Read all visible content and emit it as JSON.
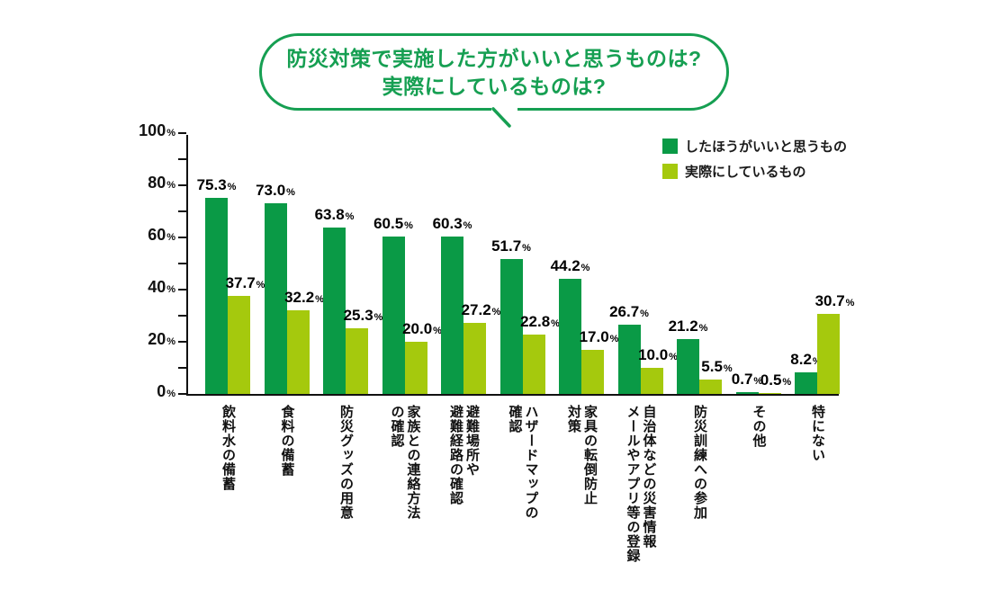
{
  "title": {
    "line1": "防災対策で実施した方がいいと思うものは?",
    "line2": "実際にしているものは?"
  },
  "colors": {
    "title_green": "#169f52",
    "series_think": "#0a9a46",
    "series_doing": "#a5c90d",
    "axis": "#111111",
    "background": "#ffffff"
  },
  "legend": {
    "items": [
      {
        "label": "したほうがいいと思うもの",
        "color": "#0a9a46"
      },
      {
        "label": "実際にしているもの",
        "color": "#a5c90d"
      }
    ]
  },
  "chart_data": {
    "type": "bar",
    "title": "防災対策で実施した方がいいと思うものは? 実際にしているものは?",
    "categories": [
      "飲料水の備蓄",
      "食料の備蓄",
      "防災グッズの用意",
      "家族との連絡方法\nの確認",
      "避難場所や\n避難経路の確認",
      "ハザードマップの\n確認",
      "家具の転倒防止\n対策",
      "自治体などの災害情報\nメールやアプリ等の登録",
      "防災訓練への参加",
      "その他",
      "特にない"
    ],
    "series": [
      {
        "name": "したほうがいいと思うもの",
        "color": "#0a9a46",
        "values": [
          75.3,
          73.0,
          63.8,
          60.5,
          60.3,
          51.7,
          44.2,
          26.7,
          21.2,
          0.7,
          8.2
        ]
      },
      {
        "name": "実際にしているもの",
        "color": "#a5c90d",
        "values": [
          37.7,
          32.2,
          25.3,
          20.0,
          27.2,
          22.8,
          17.0,
          10.0,
          5.5,
          0.5,
          30.7
        ]
      }
    ],
    "ylim": [
      0,
      100
    ],
    "y_major_step": 20,
    "y_minor_step": 10,
    "y_tick_labels": [
      "0%",
      "20%",
      "40%",
      "60%",
      "80%",
      "100%"
    ],
    "value_label_suffix": "%",
    "grid": false,
    "legend_position": "top-right"
  }
}
